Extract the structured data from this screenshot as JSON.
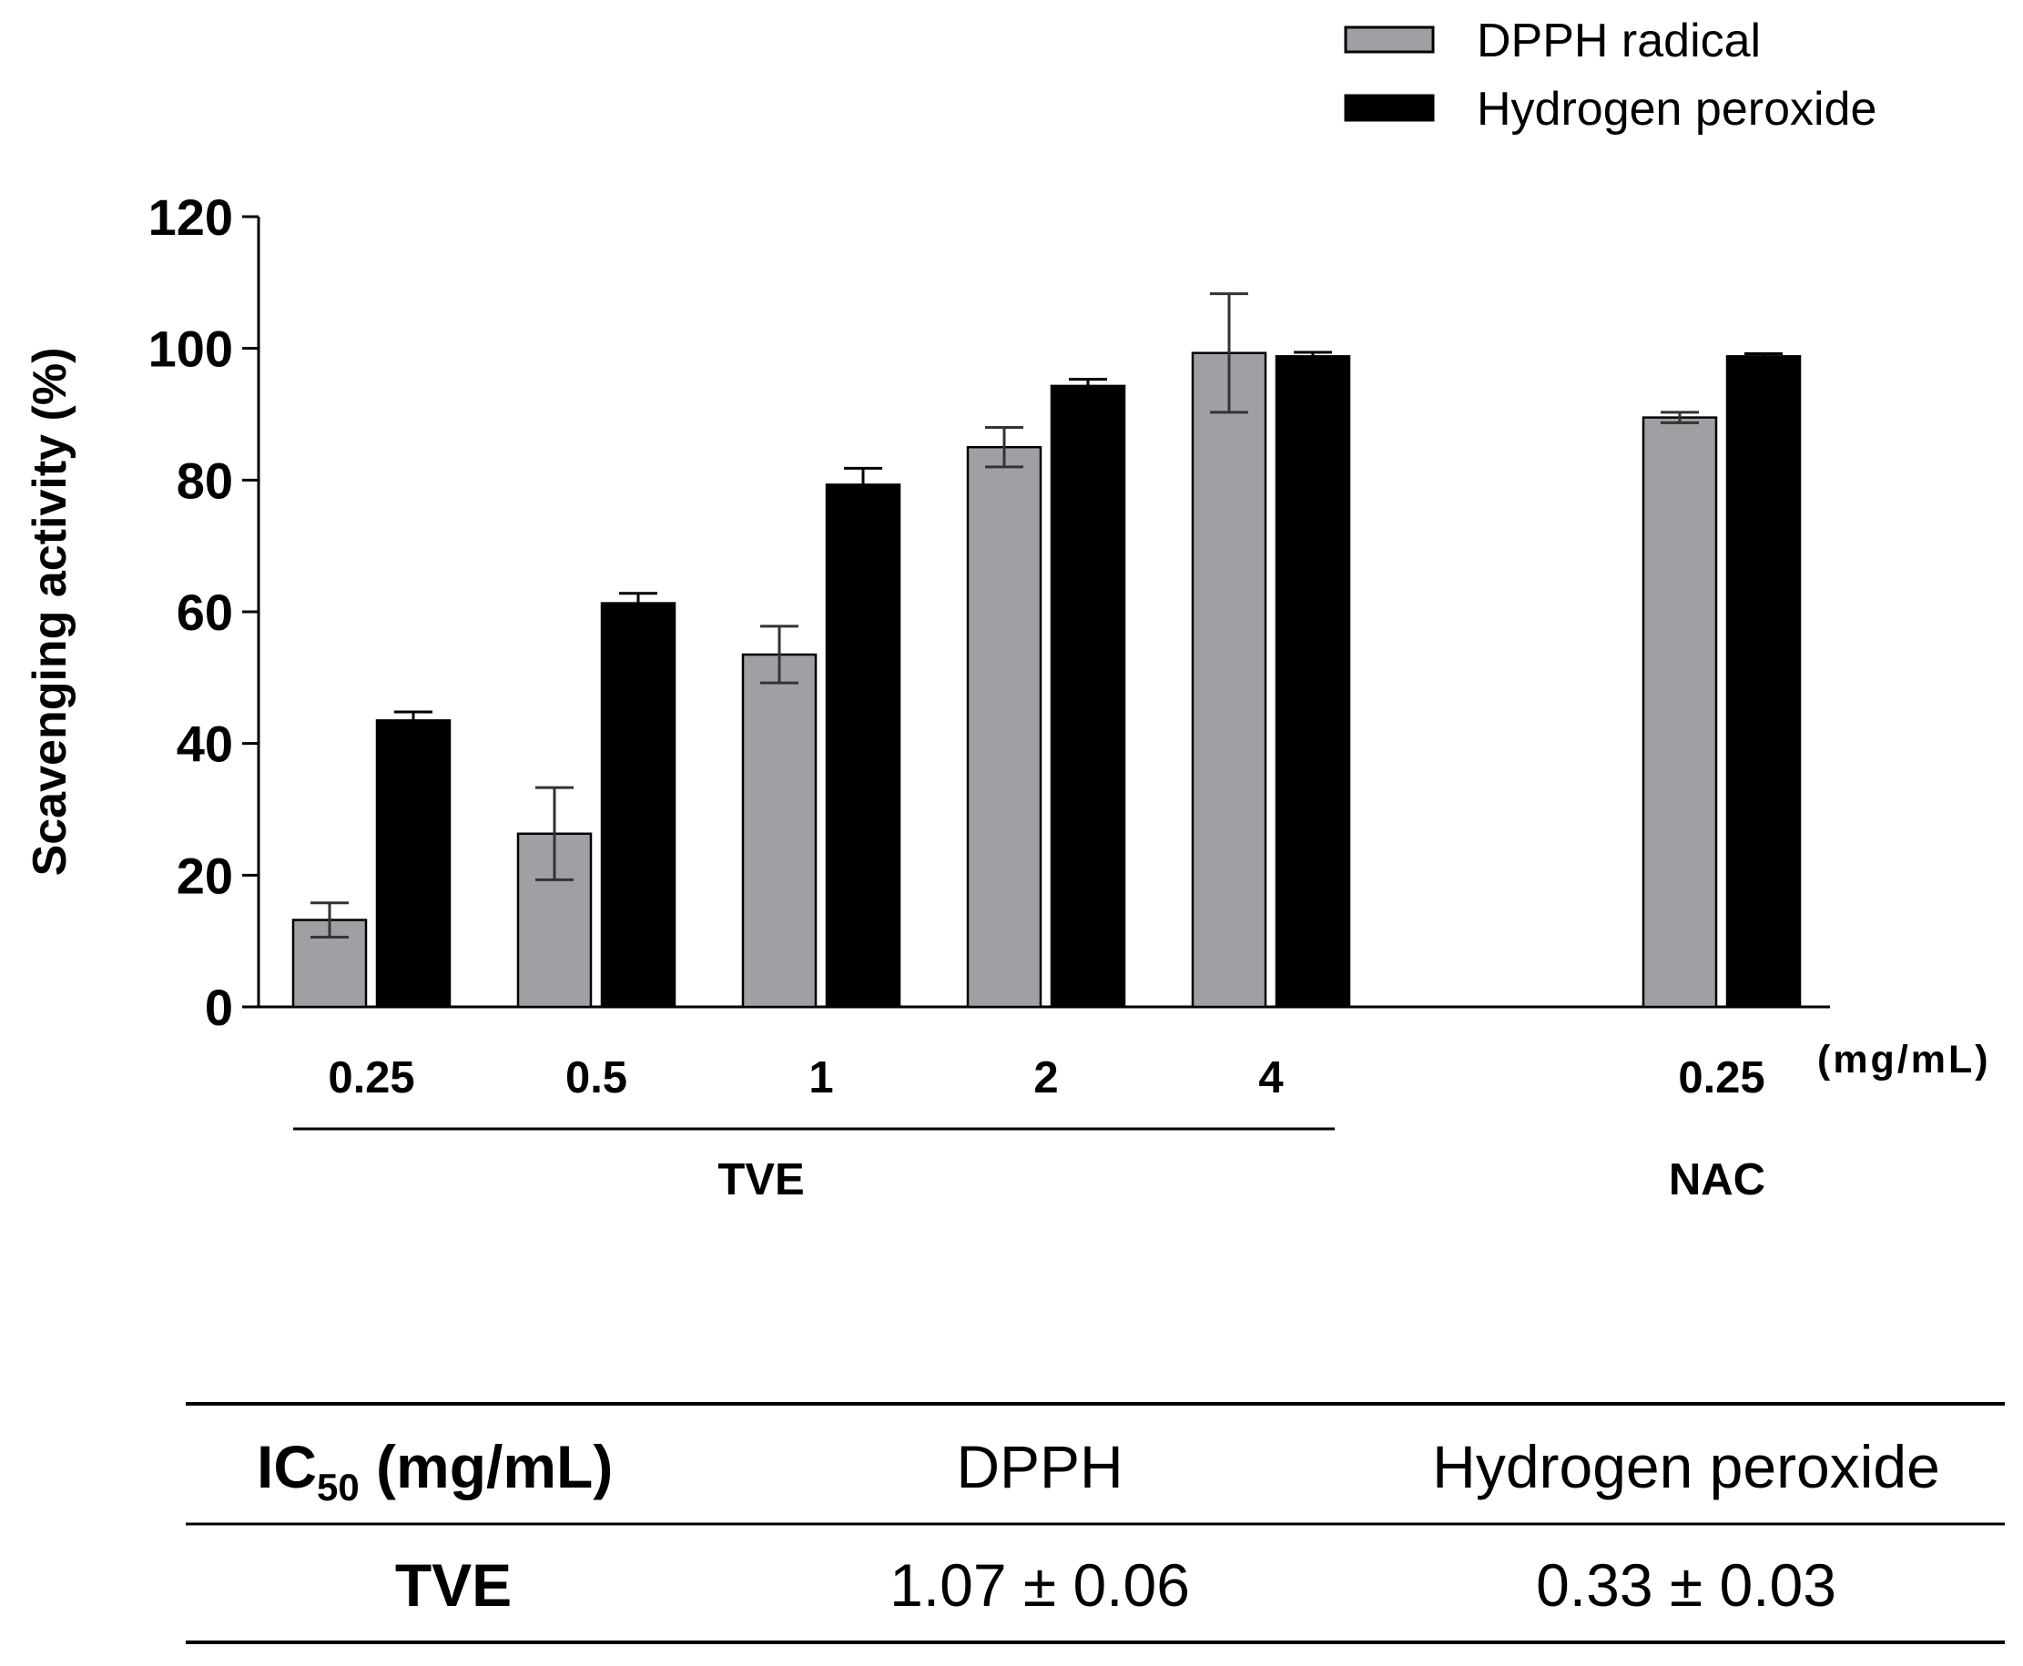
{
  "chart_data": {
    "type": "bar",
    "ylabel": "Scavenging activity (%)",
    "ylim": [
      0,
      120
    ],
    "yticks": [
      "0",
      "20",
      "40",
      "60",
      "80",
      "100",
      "120"
    ],
    "x_unit": "(mg/mL)",
    "categories": [
      "0.25",
      "0.5",
      "1",
      "2",
      "4",
      "0.25"
    ],
    "groups": [
      {
        "label": "TVE",
        "categories": [
          "0.25",
          "0.5",
          "1",
          "2",
          "4"
        ]
      },
      {
        "label": "NAC",
        "categories": [
          "0.25"
        ]
      }
    ],
    "series": [
      {
        "name": "DPPH radical",
        "color": "#a0a0a4",
        "values": [
          13.2,
          26.3,
          53.5,
          85.0,
          99.3,
          89.5
        ],
        "errors": [
          2.6,
          7.0,
          4.3,
          3.0,
          9.0,
          0.8
        ]
      },
      {
        "name": "Hydrogen peroxide",
        "color": "#000000",
        "values": [
          43.5,
          61.3,
          79.3,
          94.3,
          98.8,
          98.8
        ],
        "errors": [
          1.3,
          1.5,
          2.5,
          1.0,
          0.6,
          0.4
        ]
      }
    ],
    "legend": "top-right"
  },
  "table": {
    "header": {
      "label_main": "IC",
      "label_sub": "50",
      "label_unit": " (mg/mL)",
      "col1": "DPPH",
      "col2": "Hydrogen peroxide"
    },
    "row": {
      "label": "TVE",
      "col1": "1.07 ± 0.06",
      "col2": "0.33 ± 0.03"
    }
  }
}
